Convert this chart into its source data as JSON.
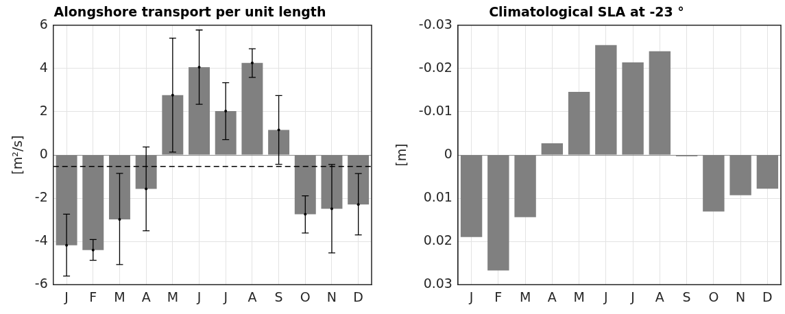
{
  "chart_data": [
    {
      "type": "bar",
      "title": "Alongshore transport per unit length",
      "ylabel": "[m²/s]",
      "categories": [
        "J",
        "F",
        "M",
        "A",
        "M",
        "J",
        "J",
        "A",
        "S",
        "O",
        "N",
        "D"
      ],
      "color": "#808080",
      "values": [
        -4.18,
        -4.4,
        -2.98,
        -1.57,
        2.77,
        4.06,
        2.03,
        4.26,
        1.16,
        -2.74,
        -2.49,
        -2.29
      ],
      "errors": [
        [
          -5.6,
          -2.74
        ],
        [
          -4.87,
          -3.91
        ],
        [
          -5.07,
          -0.85
        ],
        [
          -3.51,
          0.37
        ],
        [
          0.13,
          5.4
        ],
        [
          2.34,
          5.78
        ],
        [
          0.71,
          3.34
        ],
        [
          3.59,
          4.91
        ],
        [
          -0.43,
          2.75
        ],
        [
          -3.61,
          -1.89
        ],
        [
          -4.53,
          -0.44
        ],
        [
          -3.7,
          -0.86
        ]
      ],
      "ylim": [
        -6,
        6
      ],
      "yticks": [
        -6,
        -4,
        -2,
        0,
        2,
        4,
        6
      ],
      "ref_lines": [
        {
          "axis": "y",
          "value": -0.53,
          "color": "#000000",
          "line_style": "dashed"
        }
      ],
      "grid": true,
      "legend": false
    },
    {
      "type": "bar",
      "title": "Climatological SLA at -23 °",
      "ylabel": "[m]",
      "categories": [
        "J",
        "F",
        "M",
        "A",
        "M",
        "J",
        "J",
        "A",
        "S",
        "O",
        "N",
        "D"
      ],
      "color": "#808080",
      "values": [
        0.019,
        0.0267,
        0.0144,
        -0.0027,
        -0.0146,
        -0.0254,
        -0.0214,
        -0.024,
        0.0003,
        0.0131,
        0.0093,
        0.0078
      ],
      "ylim": [
        0.03,
        -0.03
      ],
      "yticks": [
        -0.03,
        -0.02,
        -0.01,
        0,
        0.01,
        0.02,
        0.03
      ],
      "grid": true,
      "legend": false
    }
  ]
}
